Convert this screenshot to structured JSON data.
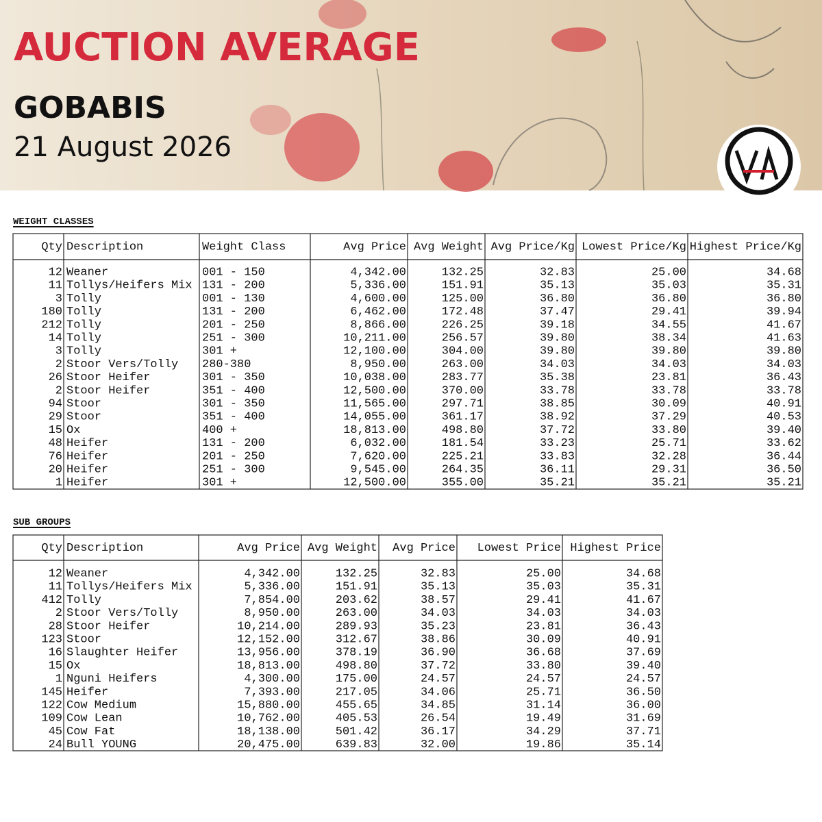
{
  "header": {
    "title": "AUCTION AVERAGE",
    "location": "GOBABIS",
    "date": "21 August 2026"
  },
  "weight_classes": {
    "title": "WEIGHT CLASSES",
    "columns": [
      "Qty",
      "Description",
      "Weight Class",
      "Avg Price",
      "Avg Weight",
      "Avg Price/Kg",
      "Lowest Price/Kg",
      "Highest Price/Kg"
    ],
    "rows": [
      [
        "12",
        "Weaner",
        "001 - 150",
        "4,342.00",
        "132.25",
        "32.83",
        "25.00",
        "34.68"
      ],
      [
        "11",
        "Tollys/Heifers Mix",
        "131 - 200",
        "5,336.00",
        "151.91",
        "35.13",
        "35.03",
        "35.31"
      ],
      [
        "3",
        "Tolly",
        "001 - 130",
        "4,600.00",
        "125.00",
        "36.80",
        "36.80",
        "36.80"
      ],
      [
        "180",
        "Tolly",
        "131 - 200",
        "6,462.00",
        "172.48",
        "37.47",
        "29.41",
        "39.94"
      ],
      [
        "212",
        "Tolly",
        "201 - 250",
        "8,866.00",
        "226.25",
        "39.18",
        "34.55",
        "41.67"
      ],
      [
        "14",
        "Tolly",
        "251 - 300",
        "10,211.00",
        "256.57",
        "39.80",
        "38.34",
        "41.63"
      ],
      [
        "3",
        "Tolly",
        "301 +",
        "12,100.00",
        "304.00",
        "39.80",
        "39.80",
        "39.80"
      ],
      [
        "2",
        "Stoor Vers/Tolly",
        "280-380",
        "8,950.00",
        "263.00",
        "34.03",
        "34.03",
        "34.03"
      ],
      [
        "26",
        "Stoor Heifer",
        "301 - 350",
        "10,038.00",
        "283.77",
        "35.38",
        "23.81",
        "36.43"
      ],
      [
        "2",
        "Stoor Heifer",
        "351 - 400",
        "12,500.00",
        "370.00",
        "33.78",
        "33.78",
        "33.78"
      ],
      [
        "94",
        "Stoor",
        "301 - 350",
        "11,565.00",
        "297.71",
        "38.85",
        "30.09",
        "40.91"
      ],
      [
        "29",
        "Stoor",
        "351 - 400",
        "14,055.00",
        "361.17",
        "38.92",
        "37.29",
        "40.53"
      ],
      [
        "15",
        "Ox",
        "400 +",
        "18,813.00",
        "498.80",
        "37.72",
        "33.80",
        "39.40"
      ],
      [
        "48",
        "Heifer",
        "131 - 200",
        "6,032.00",
        "181.54",
        "33.23",
        "25.71",
        "33.62"
      ],
      [
        "76",
        "Heifer",
        "201 - 250",
        "7,620.00",
        "225.21",
        "33.83",
        "32.28",
        "36.44"
      ],
      [
        "20",
        "Heifer",
        "251 - 300",
        "9,545.00",
        "264.35",
        "36.11",
        "29.31",
        "36.50"
      ],
      [
        "1",
        "Heifer",
        "301 +",
        "12,500.00",
        "355.00",
        "35.21",
        "35.21",
        "35.21"
      ]
    ]
  },
  "sub_groups": {
    "title": "SUB GROUPS",
    "columns": [
      "Qty",
      "Description",
      "Avg Price",
      "Avg Weight",
      "Avg Price",
      "Lowest Price",
      "Highest Price"
    ],
    "rows": [
      [
        "12",
        "Weaner",
        "4,342.00",
        "132.25",
        "32.83",
        "25.00",
        "34.68"
      ],
      [
        "11",
        "Tollys/Heifers Mix",
        "5,336.00",
        "151.91",
        "35.13",
        "35.03",
        "35.31"
      ],
      [
        "412",
        "Tolly",
        "7,854.00",
        "203.62",
        "38.57",
        "29.41",
        "41.67"
      ],
      [
        "2",
        "Stoor Vers/Tolly",
        "8,950.00",
        "263.00",
        "34.03",
        "34.03",
        "34.03"
      ],
      [
        "28",
        "Stoor Heifer",
        "10,214.00",
        "289.93",
        "35.23",
        "23.81",
        "36.43"
      ],
      [
        "123",
        "Stoor",
        "12,152.00",
        "312.67",
        "38.86",
        "30.09",
        "40.91"
      ],
      [
        "16",
        "Slaughter Heifer",
        "13,956.00",
        "378.19",
        "36.90",
        "36.68",
        "37.69"
      ],
      [
        "15",
        "Ox",
        "18,813.00",
        "498.80",
        "37.72",
        "33.80",
        "39.40"
      ],
      [
        "1",
        "Nguni Heifers",
        "4,300.00",
        "175.00",
        "24.57",
        "24.57",
        "24.57"
      ],
      [
        "145",
        "Heifer",
        "7,393.00",
        "217.05",
        "34.06",
        "25.71",
        "36.50"
      ],
      [
        "122",
        "Cow Medium",
        "15,880.00",
        "455.65",
        "34.85",
        "31.14",
        "36.00"
      ],
      [
        "109",
        "Cow Lean",
        "10,762.00",
        "405.53",
        "26.54",
        "19.49",
        "31.69"
      ],
      [
        "45",
        "Cow Fat",
        "18,138.00",
        "501.42",
        "36.17",
        "34.29",
        "37.71"
      ],
      [
        "24",
        "Bull YOUNG",
        "20,475.00",
        "639.83",
        "32.00",
        "19.86",
        "35.14"
      ]
    ]
  }
}
